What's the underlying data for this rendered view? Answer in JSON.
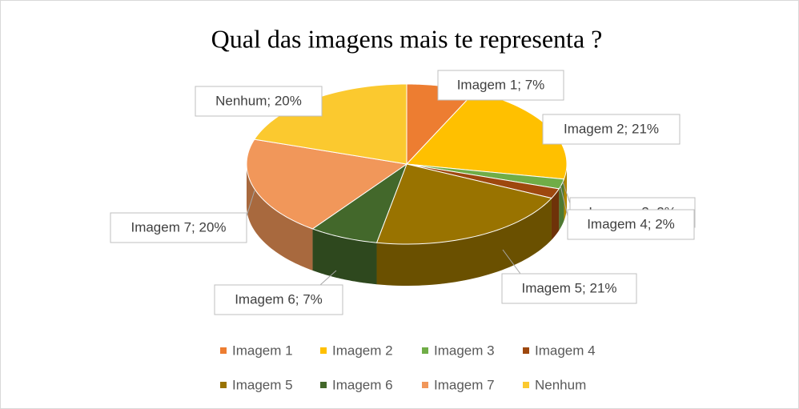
{
  "chart_data": {
    "type": "pie",
    "title": "Qual das imagens mais te representa ?",
    "categories": [
      "Imagem 1",
      "Imagem 2",
      "Imagem 3",
      "Imagem 4",
      "Imagem 5",
      "Imagem 6",
      "Imagem 7",
      "Nenhum"
    ],
    "values": [
      7,
      21,
      2,
      2,
      21,
      7,
      20,
      20
    ],
    "value_labels": [
      "Imagem 1; 7%",
      "Imagem 2; 21%",
      "Imagem 3; 2%",
      "Imagem 4; 2%",
      "Imagem 5; 21%",
      "Imagem 6; 7%",
      "Imagem 7; 20%",
      "Nenhum; 20%"
    ],
    "colors": [
      "#ed7d31",
      "#ffc000",
      "#70ad47",
      "#9e480e",
      "#997300",
      "#43682b",
      "#f1975a",
      "#fbc92f"
    ],
    "legend": "bottom"
  }
}
